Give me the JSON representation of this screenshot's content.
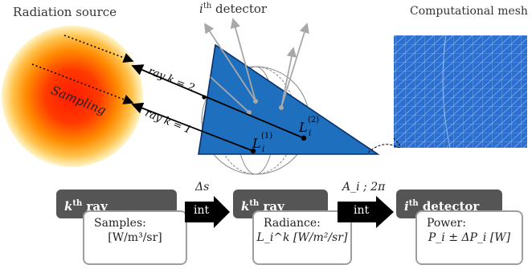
{
  "titles": {
    "radiation_source": "Radiation source",
    "detector_prefix": "i",
    "detector_sup": "th",
    "detector_suffix": " detector",
    "computational_mesh": "Computational mesh"
  },
  "source": {
    "sampling_label": "Sampling"
  },
  "rays": [
    {
      "label": "ray k = 2"
    },
    {
      "label": "ray k = 1"
    }
  ],
  "radiance_labels": [
    {
      "base": "L",
      "sub": "i",
      "sup": "(1)"
    },
    {
      "base": "L",
      "sub": "i",
      "sup": "(2)"
    }
  ],
  "flow": {
    "steps": [
      {
        "title_var": "k",
        "title_sup": "th",
        "title_text": " ray",
        "box_label": "Samples:",
        "box_value": "[W/m³/sr]"
      },
      {
        "title_var": "k",
        "title_sup": "th",
        "title_text": " ray",
        "box_label": "Radiance:",
        "box_value": "L_i^k [W/m²/sr]"
      },
      {
        "title_var": "i",
        "title_sup": "th",
        "title_text": " detector",
        "box_label": "Power:",
        "box_value": "P_i ± ΔP_i [W]"
      }
    ],
    "arrows": [
      {
        "top": "Δs",
        "inside": "int"
      },
      {
        "top": "A_i ; 2π",
        "inside": "int"
      }
    ]
  },
  "colors": {
    "triangle": "#1f6fbf",
    "mesh": "#2a6fd1",
    "source_core": "#ff1a00",
    "source_mid": "#ff8a00",
    "source_edge": "#fff3c0",
    "dark_box": "#555555",
    "light_box_border": "#9e9e9e"
  }
}
